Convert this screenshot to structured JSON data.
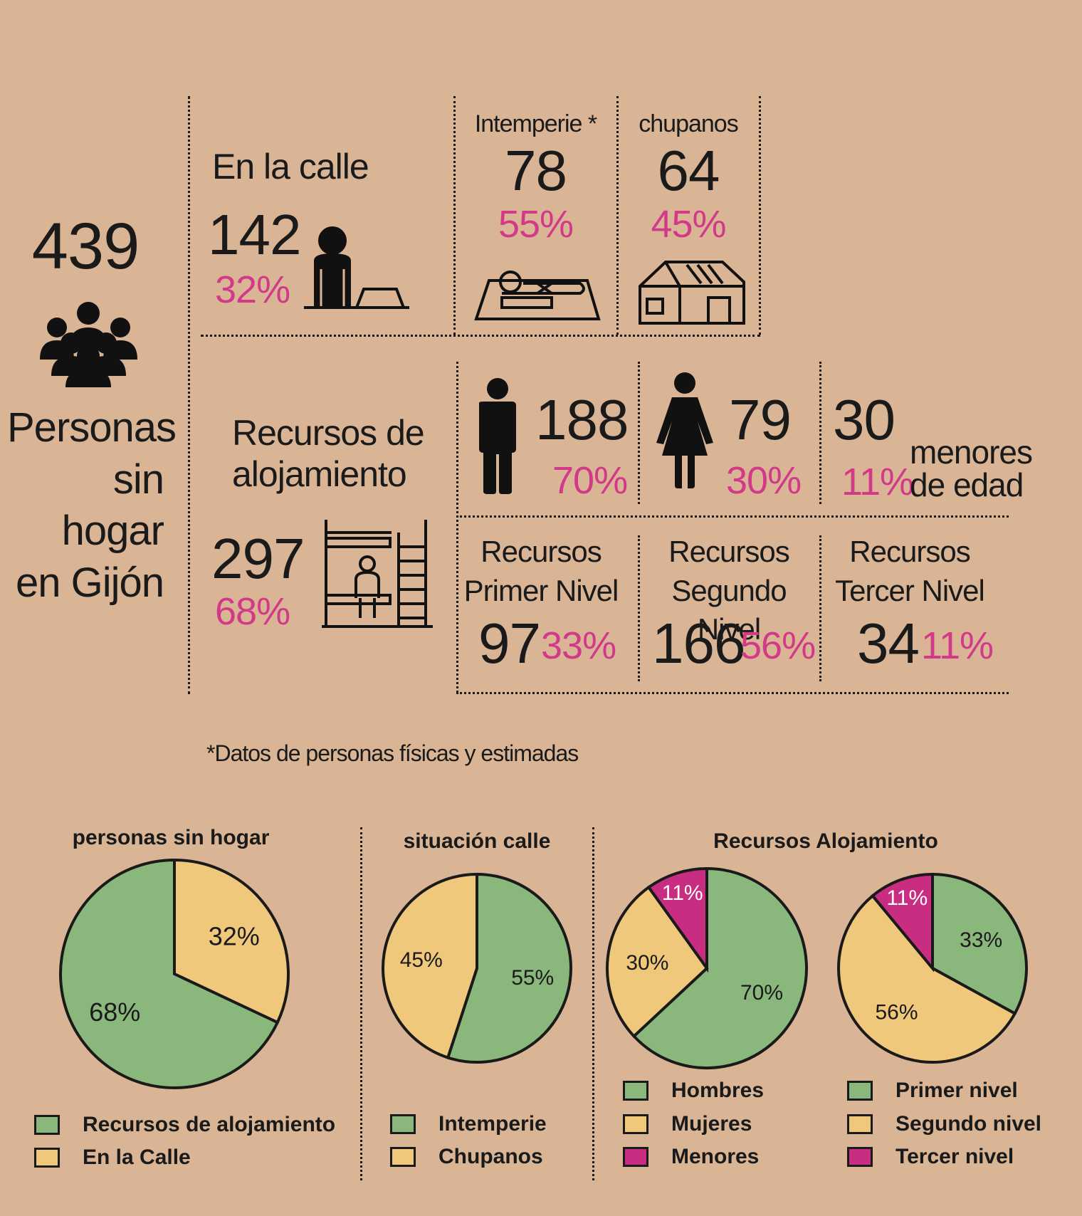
{
  "total": {
    "value": "439",
    "label_lines": [
      "Personas",
      "sin hogar",
      "en Gijón"
    ]
  },
  "calle": {
    "title": "En la calle",
    "value": "142",
    "pct": "32%"
  },
  "intemperie": {
    "title": "Intemperie *",
    "value": "78",
    "pct": "55%"
  },
  "chupanos": {
    "title": "chupanos",
    "value": "64",
    "pct": "45%"
  },
  "alojamiento": {
    "title_lines": [
      "Recursos de",
      "alojamiento"
    ],
    "value": "297",
    "pct": "68%"
  },
  "hombres": {
    "value": "188",
    "pct": "70%"
  },
  "mujeres": {
    "value": "79",
    "pct": "30%"
  },
  "menores": {
    "value": "30",
    "pct": "11%",
    "label_lines": [
      "menores",
      "de edad"
    ]
  },
  "nivel1": {
    "title_lines": [
      "Recursos",
      "Primer Nivel"
    ],
    "value": "97",
    "pct": "33%"
  },
  "nivel2": {
    "title_lines": [
      "Recursos",
      "Segundo Nivel"
    ],
    "value": "166",
    "pct": "56%"
  },
  "nivel3": {
    "title_lines": [
      "Recursos",
      "Tercer Nivel"
    ],
    "value": "34",
    "pct": "11%"
  },
  "footnote": "*Datos de personas físicas y estimadas",
  "colors": {
    "green": "#8ab77c",
    "yellow": "#f0c87b",
    "magenta": "#c92d81",
    "pink_text": "#d23a89",
    "background": "#d9b595"
  },
  "chart_data": [
    {
      "type": "pie",
      "title": "personas sin hogar",
      "slices": [
        {
          "label": "En la Calle",
          "value": 32,
          "display": "32%",
          "color": "#f0c87b"
        },
        {
          "label": "Recursos de alojamiento",
          "value": 68,
          "display": "68%",
          "color": "#8ab77c"
        }
      ],
      "legend": [
        "Recursos de alojamiento",
        "En la Calle"
      ]
    },
    {
      "type": "pie",
      "title": "situación calle",
      "slices": [
        {
          "label": "Intemperie",
          "value": 55,
          "display": "55%",
          "color": "#8ab77c"
        },
        {
          "label": "Chupanos",
          "value": 45,
          "display": "45%",
          "color": "#f0c87b"
        }
      ],
      "legend": [
        "Intemperie",
        "Chupanos"
      ]
    },
    {
      "type": "pie",
      "title": "Recursos Alojamiento",
      "slices": [
        {
          "label": "Hombres",
          "value": 70,
          "display": "70%",
          "color": "#8ab77c"
        },
        {
          "label": "Mujeres",
          "value": 30,
          "display": "30%",
          "color": "#f0c87b"
        },
        {
          "label": "Menores",
          "value": 11,
          "display": "11%",
          "color": "#c92d81"
        }
      ],
      "legend": [
        "Hombres",
        "Mujeres",
        "Menores"
      ]
    },
    {
      "type": "pie",
      "title": "",
      "slices": [
        {
          "label": "Primer nivel",
          "value": 33,
          "display": "33%",
          "color": "#8ab77c"
        },
        {
          "label": "Segundo nivel",
          "value": 56,
          "display": "56%",
          "color": "#f0c87b"
        },
        {
          "label": "Tercer nivel",
          "value": 11,
          "display": "11%",
          "color": "#c92d81"
        }
      ],
      "legend": [
        "Primer nivel",
        "Segundo nivel",
        "Tercer nivel"
      ]
    }
  ],
  "icons": [
    "people-group-icon",
    "homeless-sitting-icon",
    "sleeping-person-icon",
    "shack-icon",
    "bunk-bed-icon",
    "man-icon",
    "woman-icon"
  ]
}
